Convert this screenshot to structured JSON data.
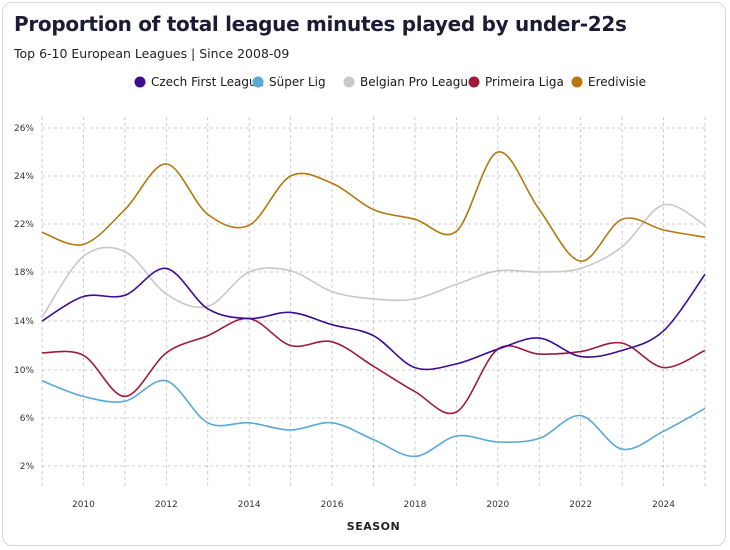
{
  "header": {
    "title": "Proportion of total league minutes played by under-22s",
    "subtitle": "Top 6-10 European Leagues | Since 2008-09"
  },
  "chart_data": {
    "type": "line",
    "title": "Proportion of total league minutes played by under-22s",
    "subtitle": "Top 6-10 European Leagues | Since 2008-09",
    "xlabel": "SEASON",
    "ylabel": "",
    "xlim": [
      2009,
      2025
    ],
    "ylim": [
      1,
      27
    ],
    "x_ticks": [
      2010,
      2012,
      2014,
      2016,
      2018,
      2020,
      2022,
      2024
    ],
    "y_ticks": [
      2,
      6,
      10,
      14,
      18,
      22,
      24,
      26
    ],
    "y_tick_labels": [
      "2%",
      "6%",
      "10%",
      "14%",
      "18%",
      "22%",
      "24%",
      "26%"
    ],
    "grid": true,
    "legend_position": "top",
    "x": [
      2009,
      2010,
      2011,
      2012,
      2013,
      2014,
      2015,
      2016,
      2017,
      2018,
      2019,
      2020,
      2021,
      2022,
      2023,
      2024,
      2025
    ],
    "series": [
      {
        "name": "Czech First League",
        "color": "#3d0c91",
        "values": [
          14.0,
          16.0,
          16.1,
          18.3,
          15.0,
          14.2,
          14.7,
          13.7,
          12.8,
          10.2,
          10.5,
          11.7,
          12.6,
          11.1,
          11.6,
          13.2,
          17.8
        ]
      },
      {
        "name": "Süper Lig",
        "color": "#5aa8d6",
        "values": [
          9.1,
          7.8,
          7.4,
          9.1,
          5.6,
          5.6,
          5.0,
          5.6,
          4.2,
          2.8,
          4.5,
          4.0,
          4.3,
          6.2,
          3.4,
          4.9,
          6.8
        ]
      },
      {
        "name": "Belgian Pro League",
        "color": "#c8c8c8",
        "values": [
          14.3,
          19.3,
          19.7,
          16.2,
          15.2,
          18.0,
          18.1,
          16.4,
          15.8,
          15.8,
          17.0,
          18.1,
          18.0,
          18.3,
          20.1,
          22.8,
          21.9
        ]
      },
      {
        "name": "Primeira Liga",
        "color": "#9e1b3a",
        "values": [
          11.4,
          11.2,
          7.8,
          11.4,
          12.8,
          14.2,
          12.0,
          12.3,
          10.3,
          8.2,
          6.5,
          11.7,
          11.3,
          11.5,
          12.2,
          10.2,
          11.6
        ]
      },
      {
        "name": "Eredivisie",
        "color": "#b5770e",
        "values": [
          21.3,
          20.3,
          22.6,
          24.5,
          22.4,
          21.9,
          24.0,
          23.7,
          22.6,
          22.2,
          21.4,
          25.0,
          22.6,
          18.9,
          22.2,
          21.5,
          20.9
        ]
      }
    ]
  }
}
